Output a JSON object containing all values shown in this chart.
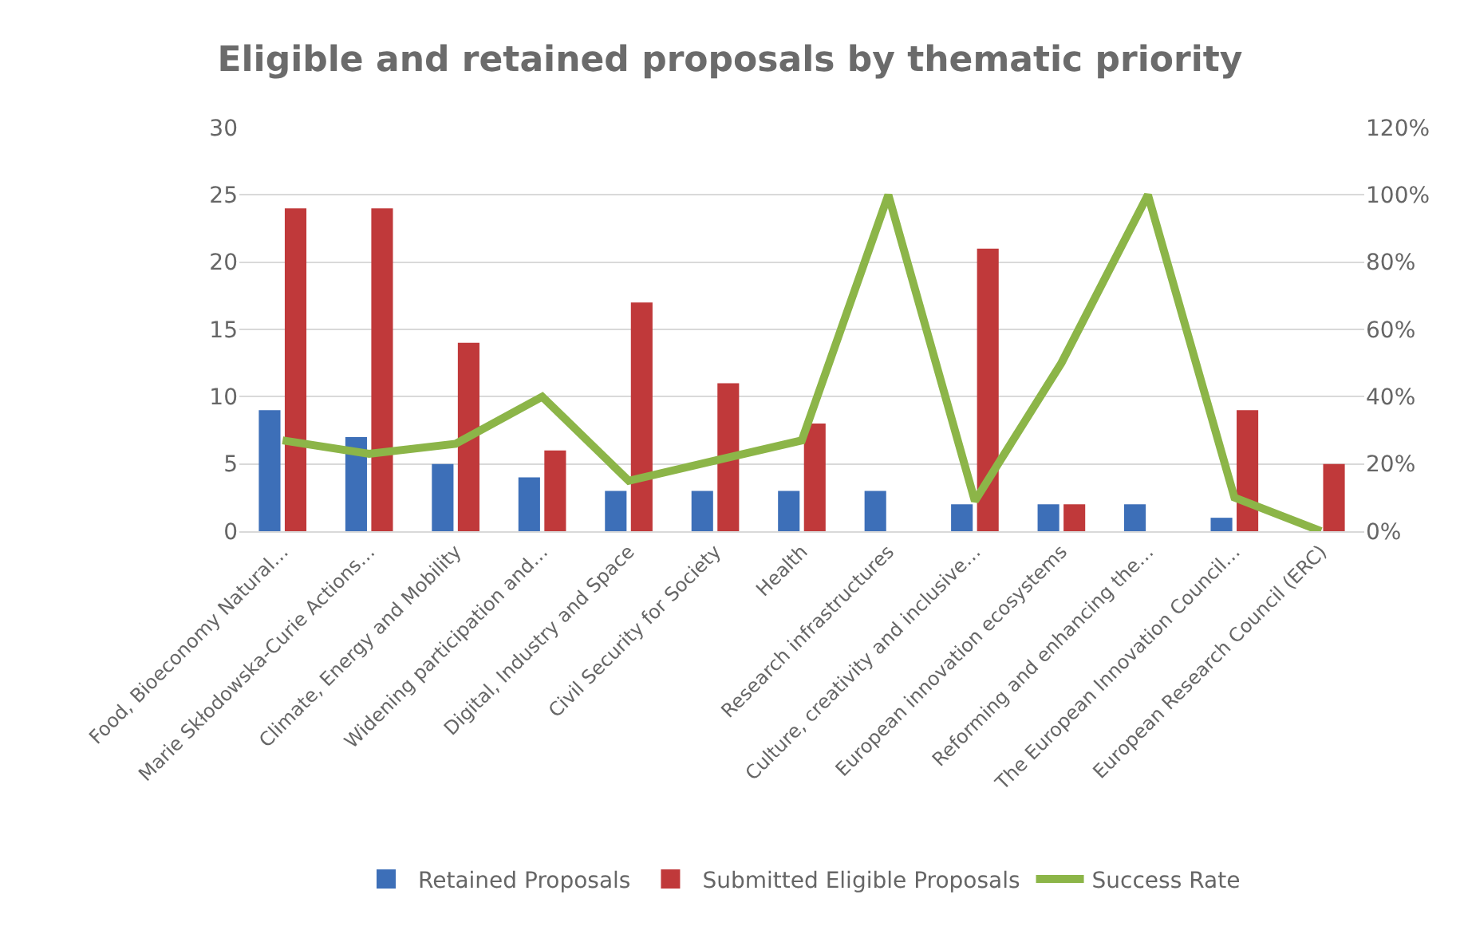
{
  "chart_data": {
    "type": "bar",
    "title": "Eligible and retained proposals by thematic priority",
    "categories": [
      "Food, Bioeconomy Natural…",
      "Marie Skłodowska-Curie Actions…",
      "Climate, Energy and Mobility",
      "Widening participation and…",
      "Digital, Industry and Space",
      "Civil Security for Society",
      "Health",
      "Research infrastructures",
      "Culture, creativity and inclusive…",
      "European innovation ecosystems",
      "Reforming and enhancing the…",
      "The European Innovation Council…",
      "European Research Council (ERC)"
    ],
    "series": [
      {
        "name": "Retained Proposals",
        "color": "#3d6fb8",
        "values": [
          9,
          7,
          5,
          4,
          3,
          3,
          3,
          3,
          2,
          2,
          2,
          1,
          0
        ]
      },
      {
        "name": "Submitted Eligible Proposals",
        "color": "#c0393a",
        "values": [
          24,
          24,
          14,
          6,
          17,
          11,
          8,
          0,
          21,
          2,
          0,
          9,
          5
        ]
      },
      {
        "name": "Success Rate",
        "type": "line",
        "axis": "y2",
        "color": "#8cb548",
        "values": [
          27,
          23,
          26,
          40,
          15,
          21,
          27,
          100,
          9,
          50,
          100,
          10,
          0
        ]
      }
    ],
    "ylim": [
      0,
      30
    ],
    "yticks": [
      0,
      5,
      10,
      15,
      20,
      25,
      30
    ],
    "y2lim": [
      0,
      120
    ],
    "y2ticks": [
      {
        "value": 0,
        "label": "0%"
      },
      {
        "value": 20,
        "label": "20%"
      },
      {
        "value": 40,
        "label": "40%"
      },
      {
        "value": 60,
        "label": "60%"
      },
      {
        "value": 80,
        "label": "80%"
      },
      {
        "value": 100,
        "label": "100%"
      },
      {
        "value": 120,
        "label": "120%"
      }
    ],
    "grid": "y",
    "legend": "bottom",
    "marker": "none",
    "line_style": "solid"
  }
}
